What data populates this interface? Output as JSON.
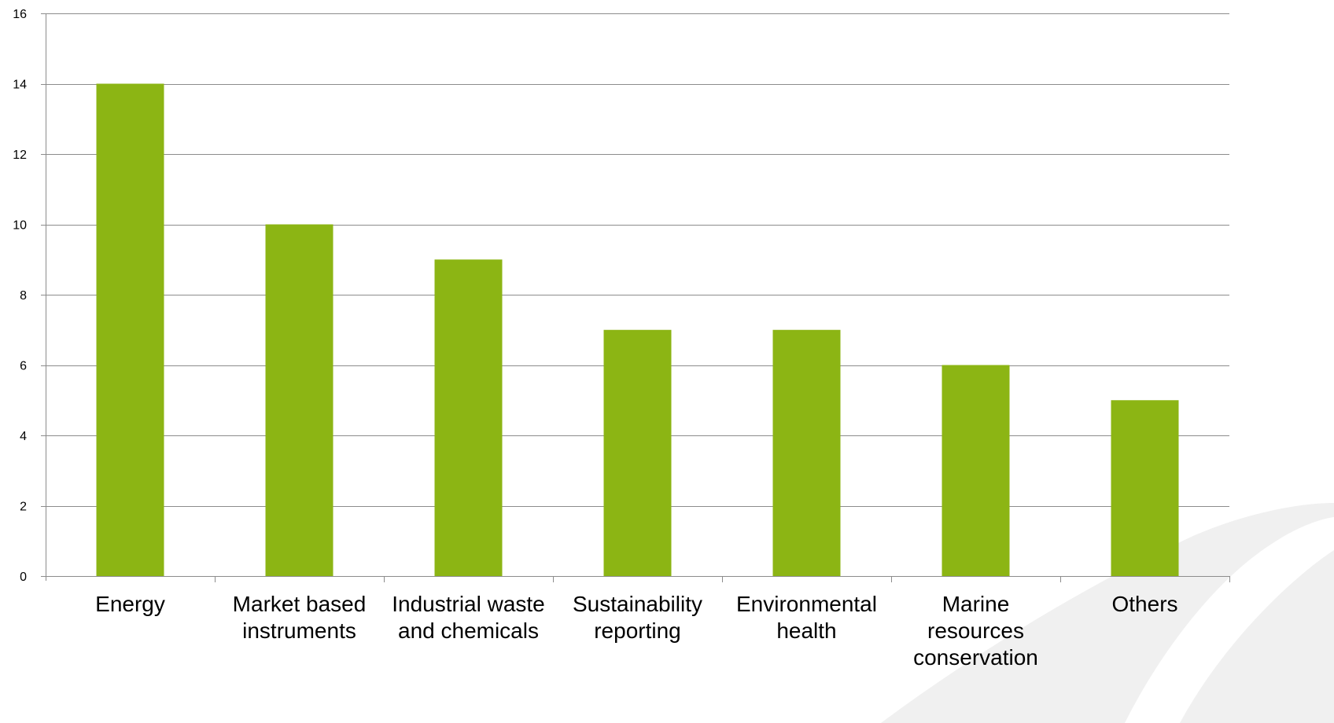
{
  "chart_data": {
    "type": "bar",
    "categories": [
      [
        "Energy"
      ],
      [
        "Market based",
        "instruments"
      ],
      [
        "Industrial waste",
        "and chemicals"
      ],
      [
        "Sustainability",
        "reporting"
      ],
      [
        "Environmental",
        "health"
      ],
      [
        "Marine",
        "resources",
        "conservation"
      ],
      [
        "Others"
      ]
    ],
    "values": [
      14,
      10,
      9,
      7,
      7,
      6,
      5
    ],
    "ylim": [
      0,
      16
    ],
    "yticks": [
      "0",
      "2",
      "4",
      "6",
      "8",
      "10",
      "12",
      "14",
      "16"
    ],
    "grid": true,
    "title": "",
    "xlabel": "",
    "ylabel": "",
    "colors": {
      "bar": "#8cb514",
      "grid": "#8c8c8c",
      "axis": "#8c8c8c",
      "watermark": "#f0f0f0"
    }
  }
}
